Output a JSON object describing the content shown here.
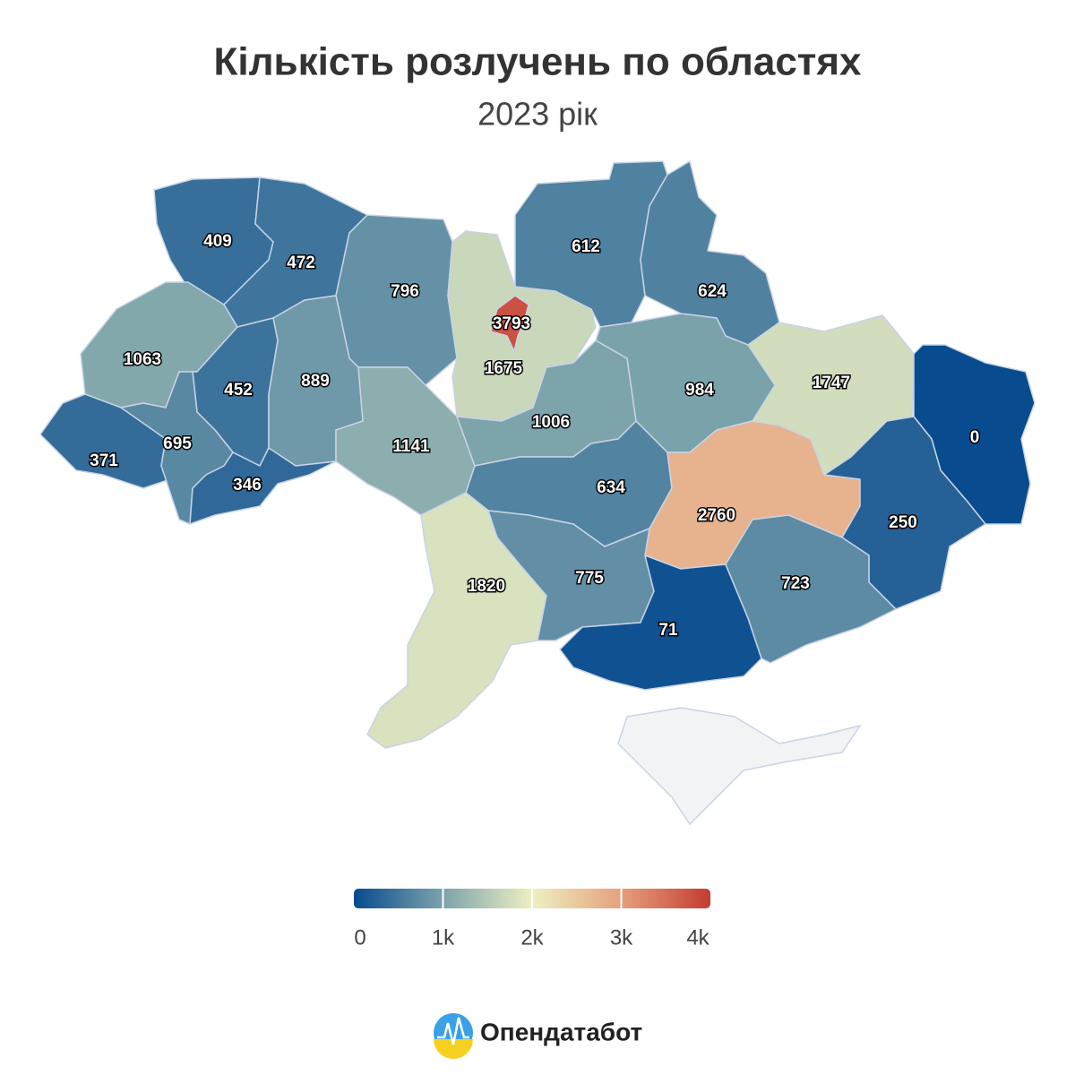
{
  "chart_data": {
    "type": "choropleth",
    "title": "Кількість розлучень по областях",
    "subtitle": "2023 рік",
    "values": [
      409,
      472,
      796,
      1675,
      3793,
      612,
      624,
      1063,
      452,
      889,
      1141,
      1006,
      984,
      1747,
      0,
      371,
      695,
      346,
      634,
      2760,
      250,
      1820,
      775,
      71,
      723
    ],
    "colorlim": [
      0,
      4000
    ],
    "colors": [
      "#084b8f",
      "#7ca3ab",
      "#eef0c2",
      "#e5a07d",
      "#c43c32"
    ],
    "ticks": [
      0,
      {
        "value": 1000,
        "label": "1k"
      },
      {
        "value": 2000,
        "label": "2k"
      },
      {
        "value": 3000,
        "label": "3k"
      },
      {
        "value": 4000,
        "label": "4k"
      }
    ]
  },
  "brand": "Опендатабот"
}
